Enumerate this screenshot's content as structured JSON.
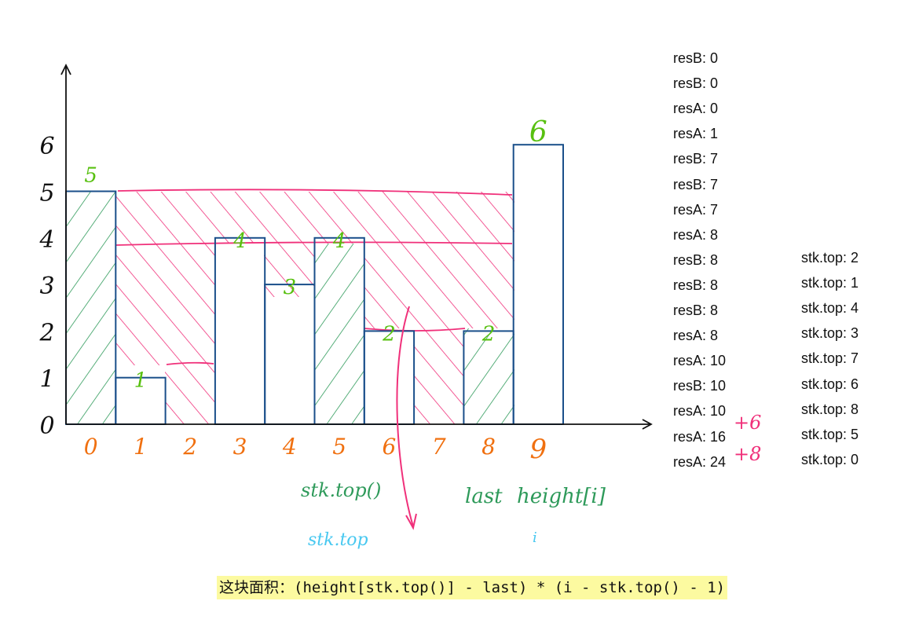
{
  "axis": {
    "y_ticks": [
      "6",
      "5",
      "4",
      "3",
      "2",
      "1",
      "0"
    ],
    "x_ticks": [
      "0",
      "1",
      "2",
      "3",
      "4",
      "5",
      "6",
      "7",
      "8",
      "9"
    ]
  },
  "bars": [
    {
      "index": 0,
      "height": 5,
      "label": "5"
    },
    {
      "index": 1,
      "height": 1,
      "label": "1"
    },
    {
      "index": 3,
      "height": 4,
      "label": "4"
    },
    {
      "index": 4,
      "height": 3,
      "label": "3"
    },
    {
      "index": 5,
      "height": 4,
      "label": "4"
    },
    {
      "index": 6,
      "height": 2,
      "label": "2"
    },
    {
      "index": 8,
      "height": 2,
      "label": "2"
    },
    {
      "index": 9,
      "height": 6,
      "label": "6"
    }
  ],
  "annotations": {
    "stk_top_call": "stk.top()",
    "stk_top": "stk.top",
    "last": "last",
    "height_i": "height[i]",
    "i": "i",
    "plus6": "+6",
    "plus8": "+8"
  },
  "res_log": [
    "resB: 0",
    "resB: 0",
    "resA: 0",
    "resA: 1",
    "resB: 7",
    "resB: 7",
    "resA: 7",
    "resA: 8",
    "resB: 8",
    "resB: 8",
    "resB: 8",
    "resA: 8",
    "resA: 10",
    "resB: 10",
    "resA: 10",
    "resA: 16",
    "resA: 24"
  ],
  "stk_log": [
    "stk.top: 2",
    "stk.top: 1",
    "stk.top: 4",
    "stk.top: 3",
    "stk.top: 7",
    "stk.top: 6",
    "stk.top: 8",
    "stk.top: 5",
    "stk.top: 0"
  ],
  "formula": "这块面积：(height[stk.top()] - last) * (i - stk.top() - 1)",
  "colors": {
    "bar_stroke": "#1a4f8a",
    "green_hatch": "#2e9a5a",
    "pink": "#f0307a",
    "orange": "#f07010",
    "label_green": "#58c010",
    "blue_note": "#48c8f0",
    "formula_bg": "#fcfaa0"
  }
}
